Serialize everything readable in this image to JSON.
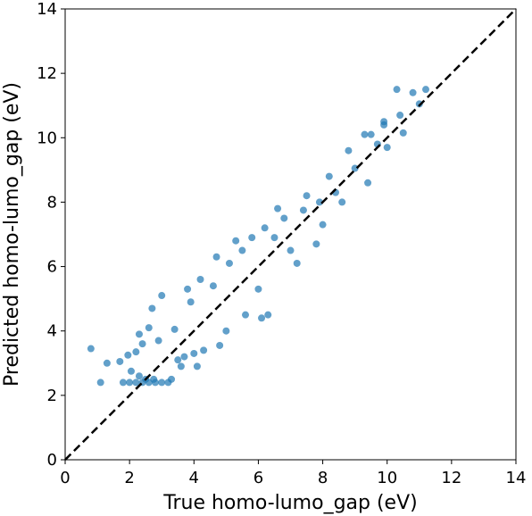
{
  "chart_data": {
    "type": "scatter",
    "xlabel": "True homo-lumo_gap (eV)",
    "ylabel": "Predicted homo-lumo_gap (eV)",
    "xlim": [
      0,
      14
    ],
    "ylim": [
      0,
      14
    ],
    "xticks": [
      0,
      2,
      4,
      6,
      8,
      10,
      12,
      14
    ],
    "yticks": [
      0,
      2,
      4,
      6,
      8,
      10,
      12,
      14
    ],
    "grid": false,
    "legend": "none",
    "marker_color": "#1f77b4",
    "reference_line": {
      "style": "dashed",
      "color": "#000000",
      "x": [
        0,
        14
      ],
      "y": [
        0,
        14
      ]
    },
    "series": [
      {
        "points": [
          [
            0.8,
            3.45
          ],
          [
            1.3,
            3.0
          ],
          [
            1.1,
            2.4
          ],
          [
            1.7,
            3.05
          ],
          [
            1.8,
            2.4
          ],
          [
            2.0,
            2.4
          ],
          [
            2.2,
            2.4
          ],
          [
            2.4,
            2.4
          ],
          [
            2.6,
            2.4
          ],
          [
            2.8,
            2.4
          ],
          [
            3.0,
            2.4
          ],
          [
            3.2,
            2.4
          ],
          [
            1.95,
            3.25
          ],
          [
            2.05,
            2.75
          ],
          [
            2.2,
            3.35
          ],
          [
            2.3,
            2.6
          ],
          [
            2.5,
            2.5
          ],
          [
            2.6,
            4.1
          ],
          [
            2.75,
            2.5
          ],
          [
            2.9,
            3.7
          ],
          [
            2.3,
            3.9
          ],
          [
            2.7,
            4.7
          ],
          [
            3.3,
            2.5
          ],
          [
            3.5,
            3.1
          ],
          [
            3.4,
            4.05
          ],
          [
            3.7,
            3.2
          ],
          [
            3.9,
            4.9
          ],
          [
            3.8,
            5.3
          ],
          [
            4.0,
            3.3
          ],
          [
            4.3,
            3.4
          ],
          [
            4.2,
            5.6
          ],
          [
            4.6,
            5.4
          ],
          [
            4.7,
            6.3
          ],
          [
            4.8,
            3.55
          ],
          [
            5.0,
            4.0
          ],
          [
            5.3,
            6.8
          ],
          [
            5.6,
            4.5
          ],
          [
            5.8,
            6.9
          ],
          [
            6.0,
            5.3
          ],
          [
            6.3,
            4.5
          ],
          [
            6.2,
            7.2
          ],
          [
            6.5,
            6.9
          ],
          [
            6.8,
            7.5
          ],
          [
            7.0,
            6.5
          ],
          [
            7.4,
            7.75
          ],
          [
            7.5,
            8.2
          ],
          [
            7.8,
            6.7
          ],
          [
            7.9,
            8.0
          ],
          [
            8.0,
            7.3
          ],
          [
            8.2,
            8.8
          ],
          [
            8.4,
            8.3
          ],
          [
            8.8,
            9.6
          ],
          [
            9.0,
            9.05
          ],
          [
            9.4,
            8.6
          ],
          [
            9.5,
            10.1
          ],
          [
            9.7,
            9.8
          ],
          [
            9.9,
            10.4
          ],
          [
            10.0,
            9.7
          ],
          [
            10.4,
            10.7
          ],
          [
            10.5,
            10.15
          ],
          [
            10.8,
            11.4
          ],
          [
            11.0,
            11.05
          ],
          [
            11.2,
            11.5
          ],
          [
            10.3,
            11.5
          ],
          [
            9.3,
            10.1
          ],
          [
            9.9,
            10.5
          ],
          [
            6.1,
            4.4
          ],
          [
            3.0,
            5.1
          ],
          [
            4.1,
            2.9
          ],
          [
            5.5,
            6.5
          ],
          [
            5.1,
            6.1
          ],
          [
            3.6,
            2.9
          ],
          [
            2.4,
            3.6
          ],
          [
            6.6,
            7.8
          ],
          [
            7.2,
            6.1
          ],
          [
            8.6,
            8.0
          ]
        ]
      }
    ]
  }
}
